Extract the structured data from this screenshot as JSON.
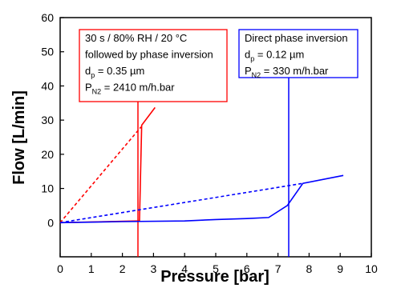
{
  "chart_data": {
    "type": "line",
    "xlabel": "Pressure [bar]",
    "ylabel": "Flow [L/min]",
    "xlim": [
      0,
      10
    ],
    "ylim": [
      -10,
      60
    ],
    "xticks": [
      0,
      1,
      2,
      3,
      4,
      5,
      6,
      7,
      8,
      9,
      10
    ],
    "yticks": [
      0,
      10,
      20,
      30,
      40,
      50,
      60
    ],
    "series": [
      {
        "color": "#ff0000",
        "dashed": false,
        "x": [
          0,
          2.5,
          2.55,
          2.62,
          3.05
        ],
        "values": [
          0,
          0.5,
          0.5,
          28.5,
          33.7
        ]
      },
      {
        "color": "#ff0000",
        "dashed": true,
        "x": [
          0,
          2.6
        ],
        "values": [
          0,
          28
        ]
      },
      {
        "color": "#0000ff",
        "dashed": false,
        "x": [
          0,
          2,
          4,
          5,
          6,
          6.7,
          7.3,
          7.8,
          9.1
        ],
        "values": [
          0,
          0.3,
          0.5,
          0.9,
          1.2,
          1.5,
          5,
          11.5,
          13.8
        ]
      },
      {
        "color": "#0000ff",
        "dashed": true,
        "x": [
          0,
          7.8
        ],
        "values": [
          0,
          11.5
        ]
      }
    ],
    "annotations": [
      {
        "color": "#ff0000",
        "lines": [
          {
            "text": "30 s / 80% RH / 20 °C"
          },
          {
            "text": "followed by phase inversion"
          },
          {
            "text": "d",
            "sub": "p",
            "tail": " = 0.35 µm"
          },
          {
            "text": "P",
            "sub": "N2",
            "tail": " = 2410 m/h.bar"
          }
        ]
      },
      {
        "color": "#0000ff",
        "lines": [
          {
            "text": "Direct phase inversion"
          },
          {
            "text": "d",
            "sub": "p",
            "tail": " = 0.12 µm"
          },
          {
            "text": "P",
            "sub": "N2",
            "tail": " = 330 m/h.bar"
          }
        ]
      }
    ]
  }
}
